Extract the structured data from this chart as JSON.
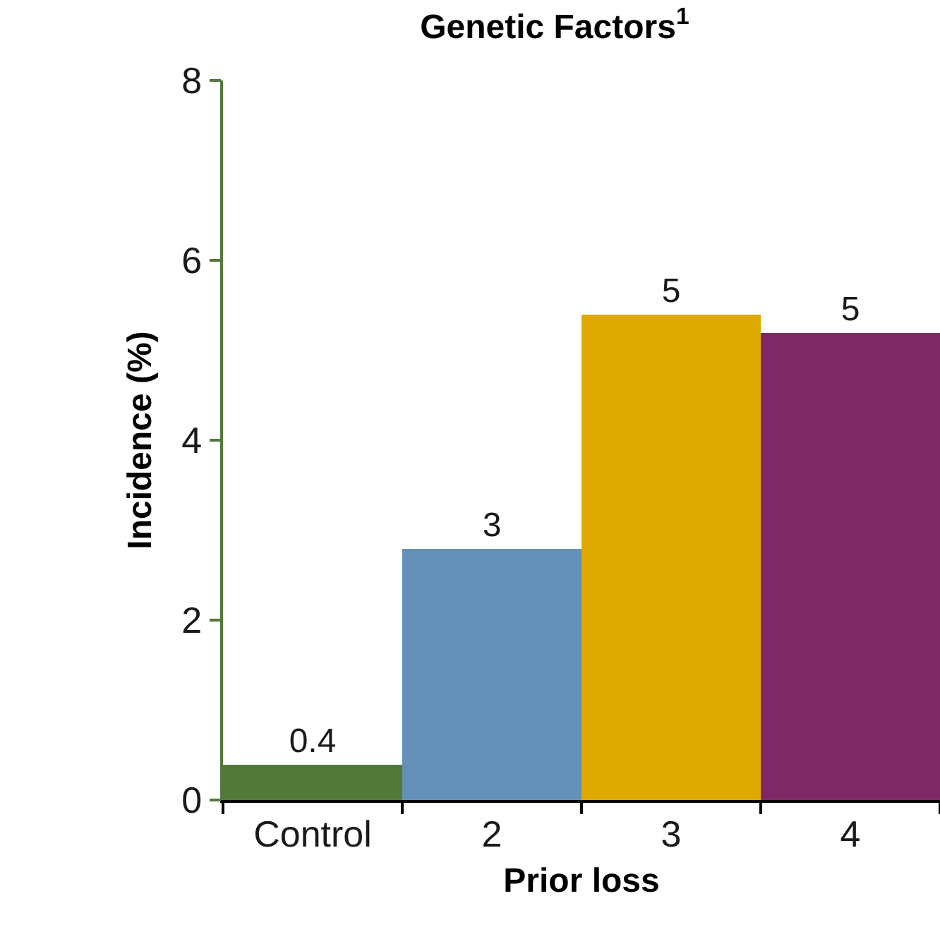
{
  "chart_data": {
    "type": "bar",
    "title": "Genetic Factors$^{1}$",
    "xlabel": "Prior loss",
    "ylabel": "Incidence (%)",
    "categories": [
      "Control",
      "2",
      "3",
      "4"
    ],
    "values": [
      0.4,
      2.8,
      5.4,
      5.2
    ],
    "colors": [
      "#52793a",
      "#6590b8",
      "#dea900",
      "#7e2866"
    ],
    "value_labels": [
      "0.4",
      "3",
      "5",
      "5"
    ],
    "ylim": [
      0,
      8
    ],
    "yticks": [
      0,
      2,
      4,
      6,
      8
    ],
    "grid": false,
    "legend": false
  }
}
